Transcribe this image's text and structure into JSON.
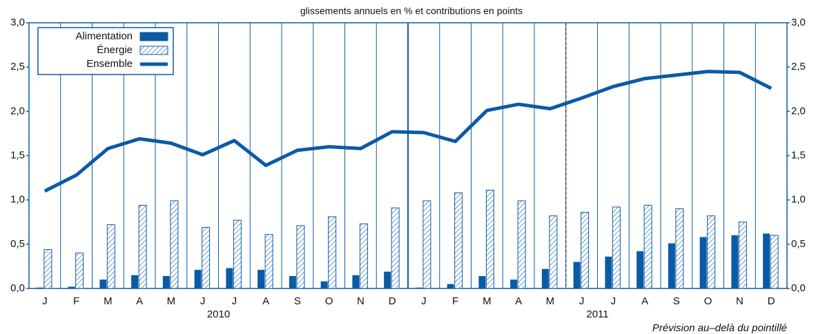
{
  "chart_data": {
    "type": "bar",
    "subtitle": "glissements annuels en % et contributions en points",
    "note": "Prévision au–delà du pointillé",
    "categories": [
      "J",
      "F",
      "M",
      "A",
      "M",
      "J",
      "J",
      "A",
      "S",
      "O",
      "N",
      "D",
      "J",
      "F",
      "M",
      "A",
      "M",
      "J",
      "J",
      "A",
      "S",
      "O",
      "N",
      "D"
    ],
    "years": [
      "2010",
      "2011"
    ],
    "series": [
      {
        "name": "Alimentation",
        "type": "bar",
        "color": "#0b5aa6",
        "pattern": "solid",
        "values": [
          0.01,
          0.02,
          0.1,
          0.15,
          0.14,
          0.21,
          0.23,
          0.21,
          0.14,
          0.08,
          0.15,
          0.19,
          0.01,
          0.05,
          0.14,
          0.1,
          0.22,
          0.3,
          0.36,
          0.42,
          0.51,
          0.58,
          0.6,
          0.62
        ]
      },
      {
        "name": "Énergie",
        "type": "bar",
        "color": "#0b5aa6",
        "pattern": "hatch",
        "values": [
          0.44,
          0.4,
          0.72,
          0.94,
          0.99,
          0.69,
          0.77,
          0.61,
          0.71,
          0.81,
          0.73,
          0.91,
          0.99,
          1.08,
          1.11,
          0.99,
          0.82,
          0.86,
          0.92,
          0.94,
          0.9,
          0.82,
          0.75,
          0.6
        ]
      },
      {
        "name": "Ensemble",
        "type": "line",
        "color": "#0b5aa6",
        "values": [
          1.1,
          1.28,
          1.58,
          1.69,
          1.64,
          1.51,
          1.67,
          1.39,
          1.56,
          1.6,
          1.58,
          1.77,
          1.76,
          1.66,
          2.01,
          2.08,
          2.03,
          2.15,
          2.28,
          2.37,
          2.41,
          2.45,
          2.44,
          2.26
        ]
      }
    ],
    "ylim": [
      0,
      3
    ],
    "yticks": [
      {
        "value": 0,
        "label": "0,0"
      },
      {
        "value": 0.5,
        "label": "0,5"
      },
      {
        "value": 1,
        "label": "1,0"
      },
      {
        "value": 1.5,
        "label": "1,5"
      },
      {
        "value": 2,
        "label": "2,0"
      },
      {
        "value": 2.5,
        "label": "2,5"
      },
      {
        "value": 3,
        "label": "3,0"
      }
    ],
    "y2lim": [
      0,
      3
    ],
    "y2ticks": [
      {
        "value": 0,
        "label": "0,0"
      },
      {
        "value": 0.5,
        "label": "0,5"
      },
      {
        "value": 1,
        "label": "1,0"
      },
      {
        "value": 1.5,
        "label": "1,5"
      },
      {
        "value": 2,
        "label": "2,0"
      },
      {
        "value": 2.5,
        "label": "2,5"
      },
      {
        "value": 3,
        "label": "3,0"
      }
    ],
    "grid": false,
    "legend": "top-left"
  }
}
